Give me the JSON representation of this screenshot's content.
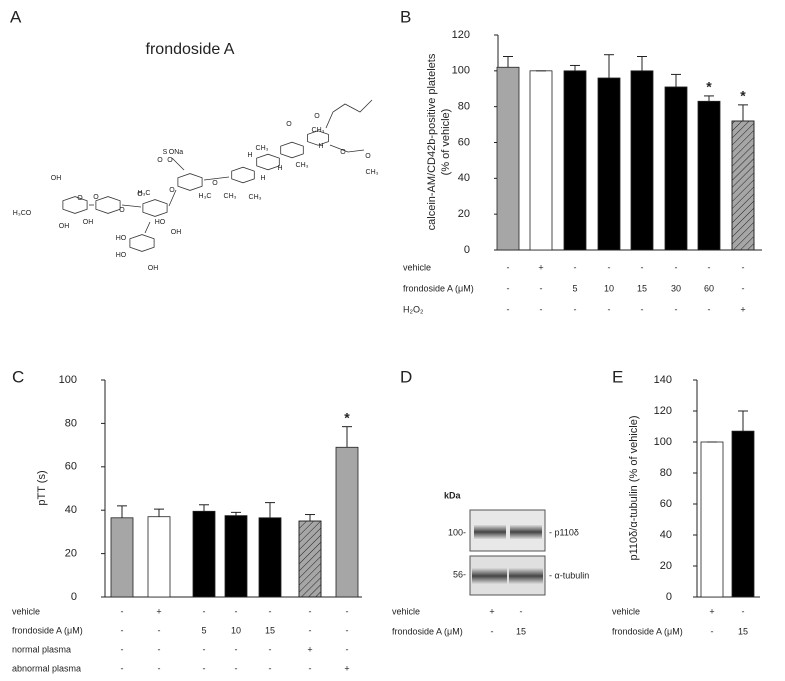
{
  "panel_a": {
    "label": "A",
    "title": "frondoside A",
    "structure_labels": [
      "OH",
      "H₃CO",
      "O",
      "OH",
      "O",
      "OH",
      "O",
      "HO",
      "HO",
      "O",
      "OH",
      "O",
      "S",
      "O",
      "ONa",
      "H₃C",
      "O",
      "HO",
      "OH",
      "O",
      "H",
      "CH₃",
      "H",
      "H",
      "CH₃",
      "H₃C",
      "CH₃",
      "O",
      "O",
      "CH₃",
      "H",
      "CH₃",
      "O",
      "O",
      "CH₃"
    ]
  },
  "panel_d": {
    "label": "D",
    "unit": "kDa",
    "markers": [
      "100-",
      "56-"
    ],
    "bands": [
      "- p110δ",
      "- α-tubulin"
    ],
    "conditions": [
      {
        "label": "vehicle",
        "values": [
          "+",
          "-"
        ]
      },
      {
        "label": "frondoside A (μM)",
        "values": [
          "-",
          "15"
        ]
      }
    ]
  },
  "chart_data": [
    {
      "type": "bar",
      "panel_label": "B",
      "ylabel": [
        "calcein-AM/CD42b-positive platelets",
        "(% of vehicle)"
      ],
      "ylim": [
        0,
        120
      ],
      "yticks": [
        0,
        20,
        40,
        60,
        80,
        100,
        120
      ],
      "values": [
        102,
        100,
        100,
        96,
        100,
        91,
        83,
        72
      ],
      "errors": [
        6,
        0,
        3,
        13,
        8,
        7,
        3,
        9
      ],
      "colors": [
        "#a6a6a6",
        "#ffffff",
        "#000000",
        "#000000",
        "#000000",
        "#000000",
        "#000000",
        "#a6a6a6"
      ],
      "patterns": [
        "solid",
        "solid",
        "solid",
        "solid",
        "solid",
        "solid",
        "solid",
        "hatch"
      ],
      "annotations": [
        {
          "index": 6,
          "text": "*"
        },
        {
          "index": 7,
          "text": "*"
        }
      ],
      "conditions": [
        {
          "label": "vehicle",
          "values": [
            "-",
            "+",
            "-",
            "-",
            "-",
            "-",
            "-",
            "-"
          ]
        },
        {
          "label": "frondoside A (μM)",
          "values": [
            "-",
            "-",
            "5",
            "10",
            "15",
            "30",
            "60",
            "-"
          ]
        },
        {
          "label": "H₂O₂",
          "values": [
            "-",
            "-",
            "-",
            "-",
            "-",
            "-",
            "-",
            "+"
          ]
        }
      ]
    },
    {
      "type": "bar",
      "panel_label": "C",
      "ylabel": [
        "pTT (s)"
      ],
      "ylim": [
        0,
        100
      ],
      "yticks": [
        0,
        20,
        40,
        60,
        80,
        100
      ],
      "values": [
        36.5,
        37,
        39.5,
        37.5,
        36.5,
        35,
        69
      ],
      "errors": [
        5.5,
        3.5,
        3,
        1.5,
        7,
        3,
        9.5
      ],
      "colors": [
        "#a6a6a6",
        "#ffffff",
        "#000000",
        "#000000",
        "#000000",
        "#a6a6a6",
        "#a6a6a6"
      ],
      "patterns": [
        "solid",
        "solid",
        "solid",
        "solid",
        "solid",
        "hatch",
        "solid"
      ],
      "annotations": [
        {
          "index": 6,
          "text": "*"
        }
      ],
      "conditions": [
        {
          "label": "vehicle",
          "values": [
            "-",
            "+",
            "-",
            "-",
            "-",
            "-",
            "-"
          ]
        },
        {
          "label": "frondoside A (μM)",
          "values": [
            "-",
            "-",
            "5",
            "10",
            "15",
            "-",
            "-"
          ]
        },
        {
          "label": "normal plasma",
          "values": [
            "-",
            "-",
            "-",
            "-",
            "-",
            "+",
            "-"
          ]
        },
        {
          "label": "abnormal plasma",
          "values": [
            "-",
            "-",
            "-",
            "-",
            "-",
            "-",
            "+"
          ]
        }
      ]
    },
    {
      "type": "bar",
      "panel_label": "E",
      "ylabel": [
        "p110δ/α-tubulin (% of vehicle)"
      ],
      "ylim": [
        0,
        140
      ],
      "yticks": [
        0,
        20,
        40,
        60,
        80,
        100,
        120,
        140
      ],
      "values": [
        100,
        107
      ],
      "errors": [
        0,
        13
      ],
      "colors": [
        "#ffffff",
        "#000000"
      ],
      "patterns": [
        "solid",
        "solid"
      ],
      "annotations": [],
      "conditions": [
        {
          "label": "vehicle",
          "values": [
            "+",
            "-"
          ]
        },
        {
          "label": "frondoside A (μM)",
          "values": [
            "-",
            "15"
          ]
        }
      ]
    }
  ]
}
